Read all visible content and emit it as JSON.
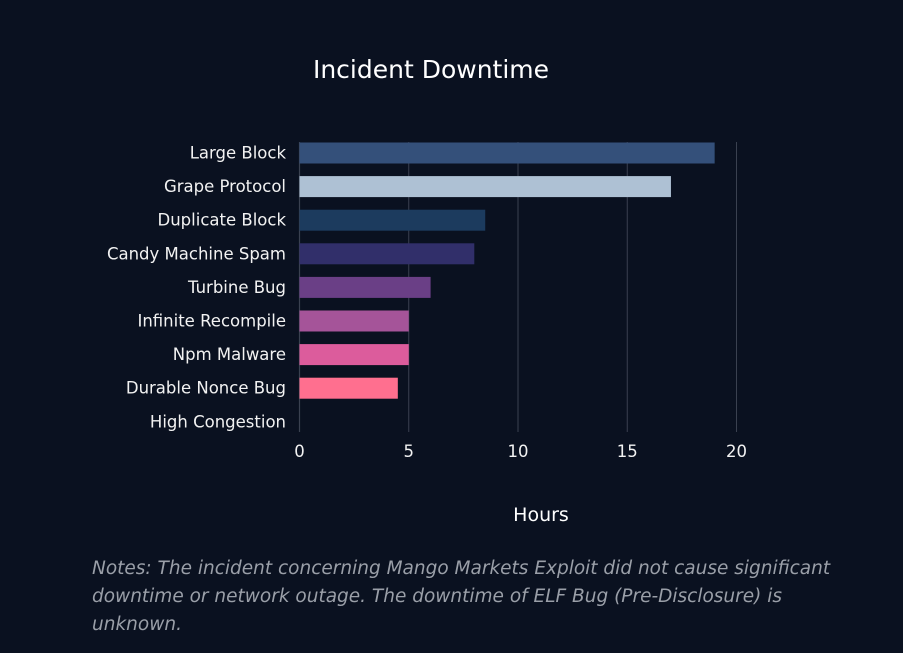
{
  "colors": {
    "background": "#0a1120",
    "grid": "#3a4150",
    "text": "#f2f2f2",
    "notes": "#9a9fa8"
  },
  "chart_data": {
    "type": "bar",
    "orientation": "horizontal",
    "title": "Incident Downtime",
    "xlabel": "Hours",
    "ylabel": "",
    "xlim": [
      0,
      20
    ],
    "xticks": [
      0,
      5,
      10,
      15,
      20
    ],
    "grid": true,
    "categories": [
      "Large Block",
      "Grape Protocol",
      "Duplicate Block",
      "Candy Machine Spam",
      "Turbine Bug",
      "Infinite Recompile",
      "Npm Malware",
      "Durable Nonce Bug",
      "High Congestion"
    ],
    "values": [
      19,
      17,
      8.5,
      8,
      6,
      5,
      5,
      4.5,
      0
    ],
    "bar_colors": [
      "#34507a",
      "#aec1d4",
      "#1c3b5e",
      "#312f6a",
      "#6a3f86",
      "#a55499",
      "#dc5c9c",
      "#ff6f8f",
      "#ff6f8f"
    ]
  },
  "notes": "Notes: The incident concerning Mango Markets Exploit did not cause significant downtime or network outage. The downtime of ELF Bug (Pre-Disclosure) is unknown."
}
